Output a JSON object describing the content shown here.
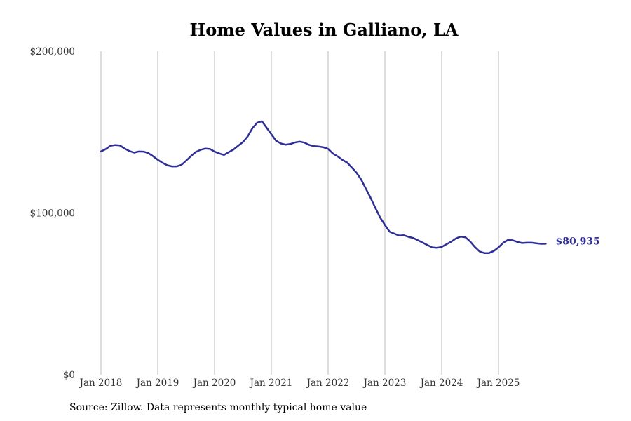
{
  "colors": {
    "series": "#2e2e96",
    "grid": "#bbbbbb",
    "background": "#ffffff"
  },
  "chart_data": {
    "type": "line",
    "title": "Home Values in Galliano, LA",
    "xlabel": "",
    "ylabel": "",
    "ylim": [
      0,
      200000
    ],
    "xlim": [
      2018.0,
      2025.83
    ],
    "grid": "vertical",
    "legend": "none",
    "y_ticks": [
      {
        "value": 0,
        "label": "$0"
      },
      {
        "value": 100000,
        "label": "$100,000"
      },
      {
        "value": 200000,
        "label": "$200,000"
      }
    ],
    "x_ticks": [
      {
        "value": 2018,
        "label": "Jan 2018"
      },
      {
        "value": 2019,
        "label": "Jan 2019"
      },
      {
        "value": 2020,
        "label": "Jan 2020"
      },
      {
        "value": 2021,
        "label": "Jan 2021"
      },
      {
        "value": 2022,
        "label": "Jan 2022"
      },
      {
        "value": 2023,
        "label": "Jan 2023"
      },
      {
        "value": 2024,
        "label": "Jan 2024"
      },
      {
        "value": 2025,
        "label": "Jan 2025"
      }
    ],
    "series": [
      {
        "name": "Typical home value",
        "end_label": "$80,935",
        "x": [
          2018.0,
          2018.083,
          2018.167,
          2018.25,
          2018.333,
          2018.417,
          2018.5,
          2018.583,
          2018.667,
          2018.75,
          2018.833,
          2018.917,
          2019.0,
          2019.083,
          2019.167,
          2019.25,
          2019.333,
          2019.417,
          2019.5,
          2019.583,
          2019.667,
          2019.75,
          2019.833,
          2019.917,
          2020.0,
          2020.083,
          2020.167,
          2020.25,
          2020.333,
          2020.417,
          2020.5,
          2020.583,
          2020.667,
          2020.75,
          2020.833,
          2020.917,
          2021.0,
          2021.083,
          2021.167,
          2021.25,
          2021.333,
          2021.417,
          2021.5,
          2021.583,
          2021.667,
          2021.75,
          2021.833,
          2021.917,
          2022.0,
          2022.083,
          2022.167,
          2022.25,
          2022.333,
          2022.417,
          2022.5,
          2022.583,
          2022.667,
          2022.75,
          2022.833,
          2022.917,
          2023.0,
          2023.083,
          2023.167,
          2023.25,
          2023.333,
          2023.417,
          2023.5,
          2023.583,
          2023.667,
          2023.75,
          2023.833,
          2023.917,
          2024.0,
          2024.083,
          2024.167,
          2024.25,
          2024.333,
          2024.417,
          2024.5,
          2024.583,
          2024.667,
          2024.75,
          2024.833,
          2024.917,
          2025.0,
          2025.083,
          2025.167,
          2025.25,
          2025.333,
          2025.417,
          2025.5,
          2025.583,
          2025.667,
          2025.75,
          2025.833
        ],
        "values": [
          138000,
          139500,
          141500,
          142000,
          141800,
          139800,
          138300,
          137300,
          138000,
          137900,
          137000,
          135100,
          132900,
          131000,
          129500,
          128800,
          128800,
          129700,
          132300,
          135100,
          137600,
          139000,
          139800,
          139600,
          137900,
          136800,
          135900,
          137600,
          139200,
          141600,
          143800,
          147300,
          152400,
          155800,
          156700,
          152700,
          148700,
          144700,
          143000,
          142200,
          142600,
          143600,
          144100,
          143500,
          142100,
          141300,
          141100,
          140600,
          139600,
          136800,
          135000,
          132800,
          131200,
          128100,
          124900,
          120600,
          114900,
          109200,
          103000,
          97100,
          92600,
          88400,
          87200,
          86000,
          86200,
          85200,
          84500,
          83100,
          81600,
          80100,
          78700,
          78400,
          79000,
          80600,
          82200,
          84200,
          85400,
          85000,
          82400,
          79000,
          76200,
          75200,
          75200,
          76500,
          78700,
          81500,
          83300,
          83100,
          82100,
          81400,
          81600,
          81600,
          81200,
          80900,
          80935
        ]
      }
    ]
  },
  "footer": {
    "source": "Source: Zillow. Data represents monthly typical home value"
  }
}
